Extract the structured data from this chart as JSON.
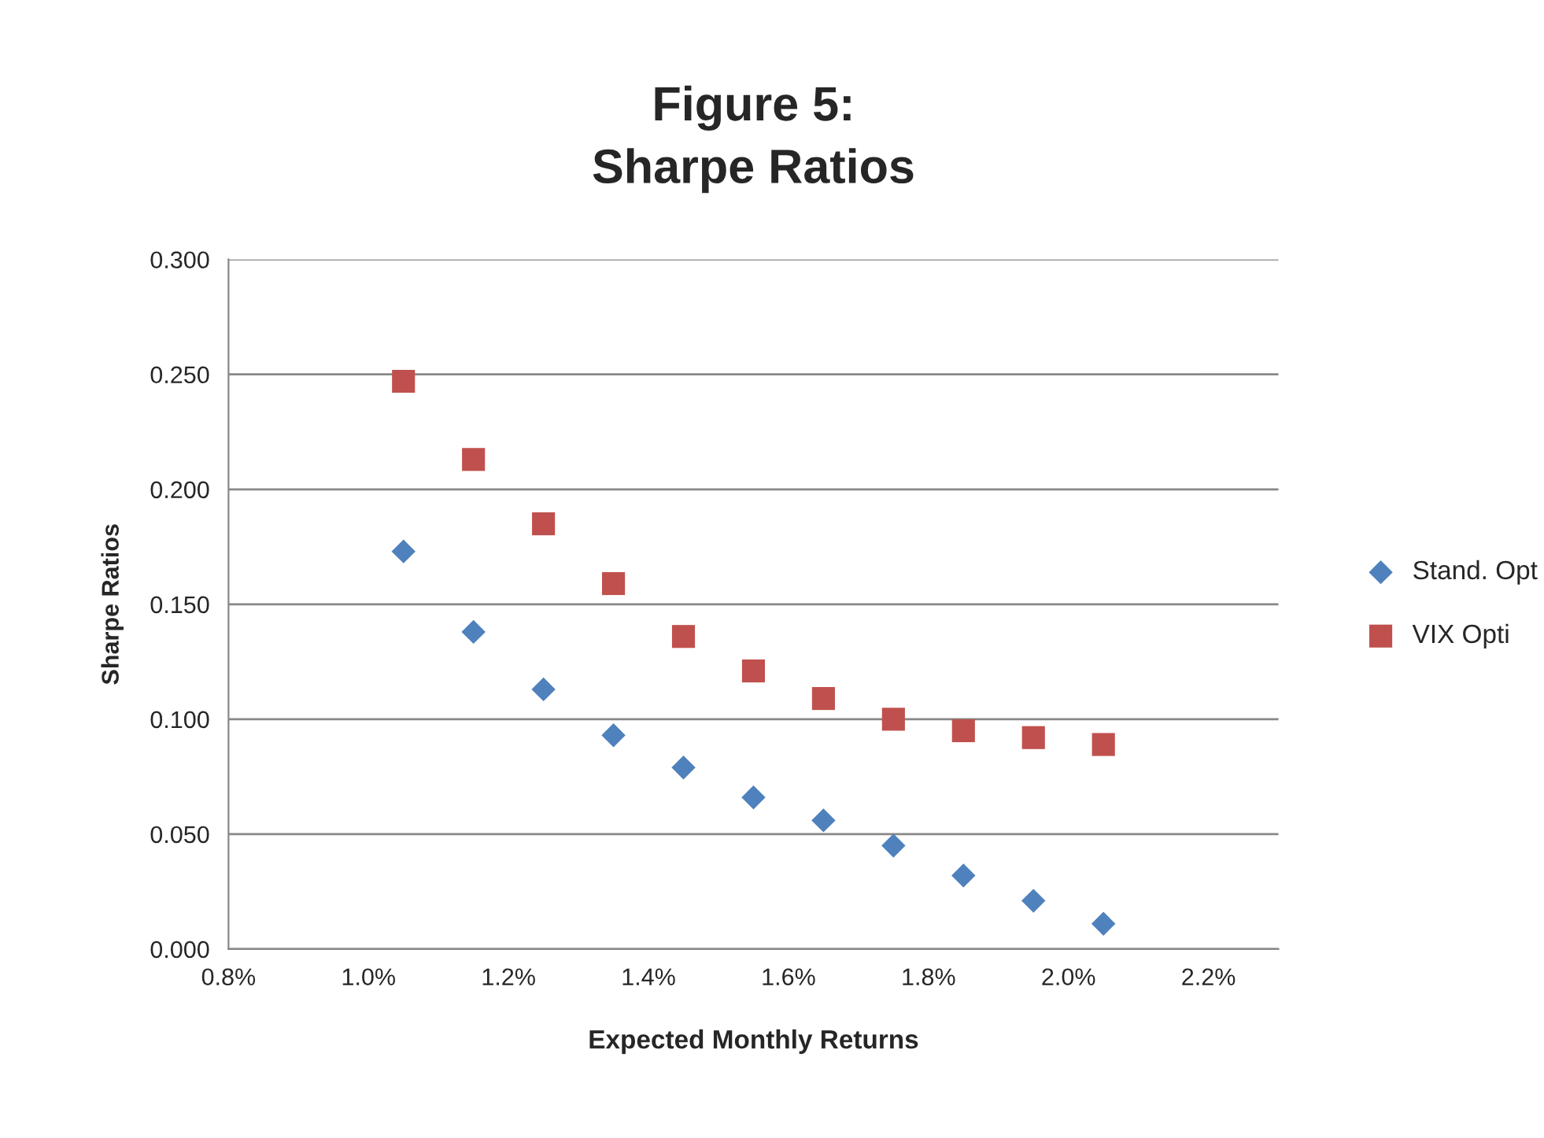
{
  "chart_data": {
    "type": "scatter",
    "title": "Figure 5:\nSharpe Ratios",
    "xlabel": "Expected Monthly Returns",
    "ylabel": "Sharpe Ratios",
    "x": [
      1.05,
      1.15,
      1.25,
      1.35,
      1.45,
      1.55,
      1.65,
      1.75,
      1.85,
      1.95,
      2.05
    ],
    "series": [
      {
        "name": "Stand. Opt",
        "color": "#4f81bd",
        "marker": "diamond",
        "values": [
          0.173,
          0.138,
          0.113,
          0.093,
          0.079,
          0.066,
          0.056,
          0.045,
          0.032,
          0.021,
          0.011
        ]
      },
      {
        "name": "VIX Opti",
        "color": "#c0504d",
        "marker": "square",
        "values": [
          0.247,
          0.213,
          0.185,
          0.159,
          0.136,
          0.121,
          0.109,
          0.1,
          0.095,
          0.092,
          0.089
        ]
      }
    ],
    "xlim": [
      0.8,
      2.3
    ],
    "xticks": [
      {
        "value": 0.8,
        "label": "0.8%"
      },
      {
        "value": 1.0,
        "label": "1.0%"
      },
      {
        "value": 1.2,
        "label": "1.2%"
      },
      {
        "value": 1.4,
        "label": "1.4%"
      },
      {
        "value": 1.6,
        "label": "1.6%"
      },
      {
        "value": 1.8,
        "label": "1.8%"
      },
      {
        "value": 2.0,
        "label": "2.0%"
      },
      {
        "value": 2.2,
        "label": "2.2%"
      }
    ],
    "ylim": [
      0,
      0.3
    ],
    "yticks": [
      {
        "value": 0,
        "label": "0.000"
      },
      {
        "value": 0.05,
        "label": "0.050"
      },
      {
        "value": 0.1,
        "label": "0.100"
      },
      {
        "value": 0.15,
        "label": "0.150"
      },
      {
        "value": 0.2,
        "label": "0.200"
      },
      {
        "value": 0.25,
        "label": "0.250"
      },
      {
        "value": 0.3,
        "label": "0.300"
      }
    ],
    "grid": "y",
    "legend": "right"
  }
}
